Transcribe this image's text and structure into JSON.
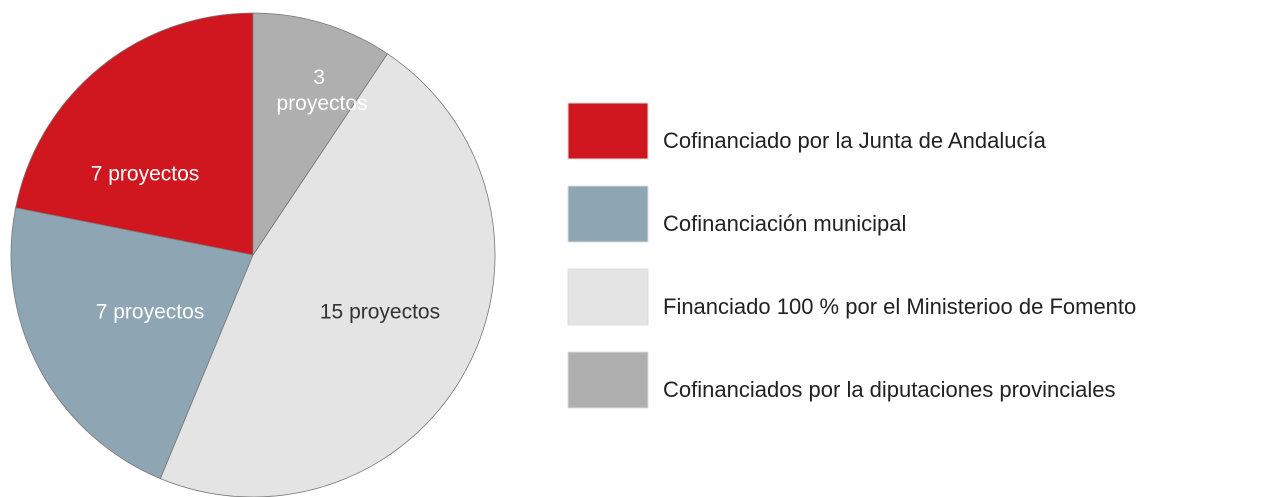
{
  "chart_data": {
    "type": "pie",
    "categories": [
      "Cofinanciado por la Junta de Andalucía",
      "Cofinanciación municipal",
      "Financiado 100 % por el Ministerioo de Fomento",
      "Cofinanciados por la diputaciones provinciales"
    ],
    "values": [
      7,
      7,
      15,
      3
    ],
    "value_labels": [
      "7 proyectos",
      "7 proyectos",
      "15 proyectos",
      "3 proyectos"
    ],
    "colors": [
      "#d0161e",
      "#8ea5b4",
      "#e4e4e4",
      "#afafaf"
    ]
  }
}
